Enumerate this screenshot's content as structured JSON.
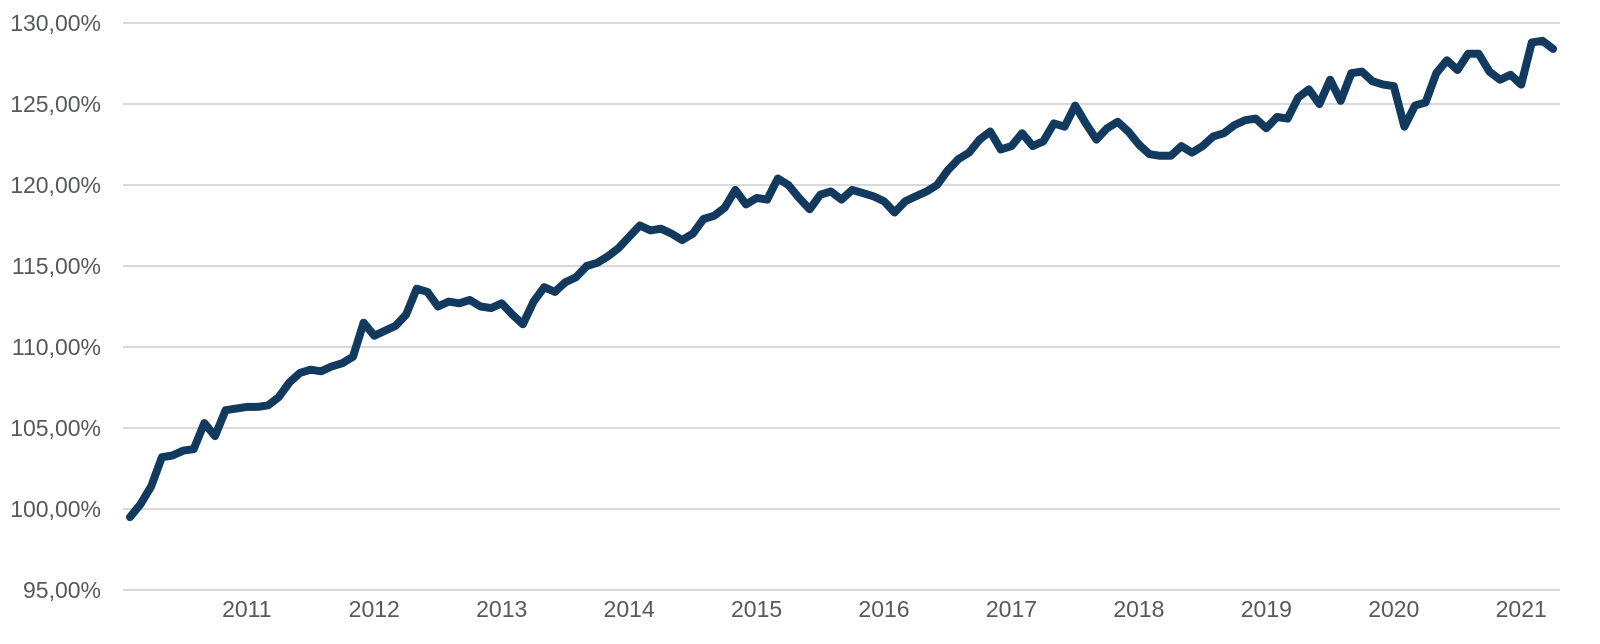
{
  "chart_data": {
    "type": "line",
    "title": "",
    "legend": "none",
    "grid": "horizontal-only",
    "background": "#ffffff",
    "series": [
      {
        "name": "cumulative-performance",
        "color": "#12395e",
        "frequency": "monthly",
        "start_month": "2010-02",
        "end_month": "2021-04",
        "values": [
          99.5,
          100.3,
          101.4,
          103.2,
          103.3,
          103.6,
          103.7,
          105.3,
          104.5,
          106.1,
          106.2,
          106.3,
          106.3,
          106.4,
          106.9,
          107.8,
          108.4,
          108.6,
          108.5,
          108.8,
          109.0,
          109.4,
          111.5,
          110.7,
          111.0,
          111.3,
          112.0,
          113.6,
          113.4,
          112.5,
          112.8,
          112.7,
          112.9,
          112.5,
          112.4,
          112.7,
          112.0,
          111.4,
          112.8,
          113.7,
          113.4,
          114.0,
          114.3,
          115.0,
          115.2,
          115.6,
          116.1,
          116.8,
          117.5,
          117.2,
          117.3,
          117.0,
          116.6,
          117.0,
          117.9,
          118.1,
          118.6,
          119.7,
          118.8,
          119.2,
          119.1,
          120.4,
          120.0,
          119.2,
          118.5,
          119.4,
          119.6,
          119.1,
          119.7,
          119.5,
          119.3,
          119.0,
          118.3,
          119.0,
          119.3,
          119.6,
          120.0,
          120.9,
          121.6,
          122.0,
          122.8,
          123.3,
          122.2,
          122.4,
          123.2,
          122.4,
          122.7,
          123.8,
          123.6,
          124.9,
          123.8,
          122.8,
          123.5,
          123.9,
          123.3,
          122.5,
          121.9,
          121.8,
          121.8,
          122.4,
          122.0,
          122.4,
          123.0,
          123.2,
          123.7,
          124.0,
          124.1,
          123.5,
          124.2,
          124.1,
          125.4,
          125.9,
          125.0,
          126.5,
          125.2,
          126.9,
          127.0,
          126.4,
          126.2,
          126.1,
          123.6,
          124.9,
          125.1,
          126.9,
          127.7,
          127.1,
          128.1,
          128.1,
          127.0,
          126.5,
          126.8,
          126.2,
          128.8,
          128.9,
          128.4
        ]
      }
    ],
    "y_axis": {
      "min": 95,
      "max": 130,
      "step": 5,
      "unit": "%",
      "number_format": "comma-decimal",
      "tick_values": [
        130,
        125,
        120,
        115,
        110,
        105,
        100,
        95
      ],
      "tick_labels": [
        "130,00%",
        "125,00%",
        "120,00%",
        "115,00%",
        "110,00%",
        "105,00%",
        "100,00%",
        "95,00%"
      ]
    },
    "x_axis": {
      "tick_years": [
        2011,
        2012,
        2013,
        2014,
        2015,
        2016,
        2017,
        2018,
        2019,
        2020,
        2021
      ],
      "tick_labels": [
        "2011",
        "2012",
        "2013",
        "2014",
        "2015",
        "2016",
        "2017",
        "2018",
        "2019",
        "2020",
        "2021"
      ]
    },
    "colors": {
      "line": "#12395e",
      "gridline": "#d9d9da",
      "tick_text": "#58595a",
      "background": "#ffffff"
    }
  }
}
